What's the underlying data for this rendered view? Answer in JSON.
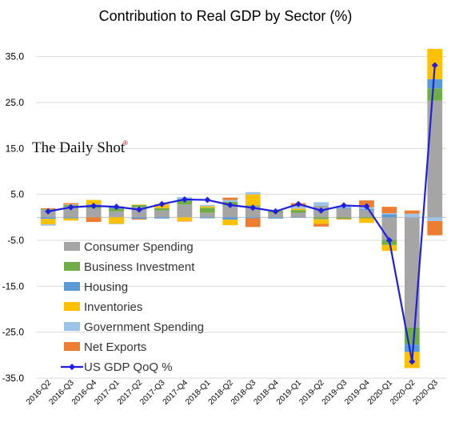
{
  "chart_data": {
    "type": "bar",
    "title": "Contribution to Real GDP by Sector (%)",
    "watermark": "The Daily Shot",
    "watermark_mark": "®",
    "ylim": [
      -35,
      40
    ],
    "yticks": [
      35,
      25,
      15,
      5,
      -5,
      -15,
      -25,
      -35
    ],
    "ytick_labels": [
      "35.0",
      "25.0",
      "15.0",
      "5.0",
      "-5.0",
      "-15.0",
      "-25.0",
      "-35.0"
    ],
    "grid": "horizontal",
    "legend_position": "lower-left",
    "categories": [
      "2016-Q2",
      "2016-Q3",
      "2016-Q4",
      "2017-Q1",
      "2017-Q2",
      "2017-Q3",
      "2017-Q4",
      "2018-Q1",
      "2018-Q2",
      "2018-Q3",
      "2018-Q4",
      "2019-Q1",
      "2019-Q2",
      "2019-Q3",
      "2019-Q4",
      "2020-Q1",
      "2020-Q2",
      "2020-Q3"
    ],
    "series": [
      {
        "name": "Consumer Spending",
        "kind": "bar",
        "color": "#a5a5a5",
        "values": [
          1.7,
          2.3,
          2.0,
          1.3,
          2.2,
          1.5,
          2.8,
          1.0,
          2.6,
          2.4,
          1.0,
          1.0,
          2.5,
          1.9,
          1.6,
          -4.9,
          -24.0,
          25.4
        ]
      },
      {
        "name": "Business Investment",
        "kind": "bar",
        "color": "#70ad47",
        "values": [
          0.1,
          0.4,
          0.5,
          0.6,
          0.5,
          0.5,
          0.8,
          1.1,
          0.8,
          0.2,
          0.4,
          0.6,
          -0.3,
          -0.3,
          -0.2,
          -1.1,
          -3.7,
          2.7
        ]
      },
      {
        "name": "Housing",
        "kind": "bar",
        "color": "#5b9bd5",
        "values": [
          -0.3,
          -0.2,
          0.3,
          0.3,
          -0.3,
          -0.2,
          0.4,
          -0.2,
          -0.5,
          -0.2,
          -0.2,
          -0.1,
          -0.1,
          0.2,
          0.2,
          0.7,
          -1.6,
          2.0
        ]
      },
      {
        "name": "Inventories",
        "kind": "bar",
        "color": "#ffc000",
        "values": [
          -1.2,
          -0.5,
          1.0,
          -1.4,
          0.1,
          0.8,
          -0.8,
          0.3,
          -1.2,
          2.4,
          0.1,
          0.3,
          -1.0,
          -0.1,
          -1.0,
          -1.3,
          -3.5,
          6.6
        ]
      },
      {
        "name": "Government Spending",
        "kind": "bar",
        "color": "#9dc3e6",
        "values": [
          -0.3,
          0.1,
          0.0,
          -0.1,
          0.0,
          -0.1,
          0.4,
          0.3,
          0.4,
          0.5,
          -0.1,
          0.5,
          0.8,
          0.3,
          0.4,
          0.2,
          0.8,
          -0.8
        ]
      },
      {
        "name": "Net Exports",
        "kind": "bar",
        "color": "#ed7d31",
        "values": [
          0.2,
          0.3,
          -1.0,
          0.2,
          -0.2,
          0.1,
          -0.1,
          0.0,
          0.5,
          -1.9,
          0.0,
          0.7,
          -0.6,
          -0.1,
          1.5,
          1.4,
          0.7,
          -3.1
        ]
      },
      {
        "name": "US GDP QoQ %",
        "kind": "line",
        "color": "#1f1fde",
        "values": [
          1.3,
          2.2,
          2.5,
          2.3,
          1.7,
          2.9,
          3.9,
          3.8,
          2.7,
          2.1,
          1.3,
          2.9,
          1.5,
          2.6,
          2.4,
          -5.0,
          -31.4,
          33.1
        ]
      }
    ]
  }
}
